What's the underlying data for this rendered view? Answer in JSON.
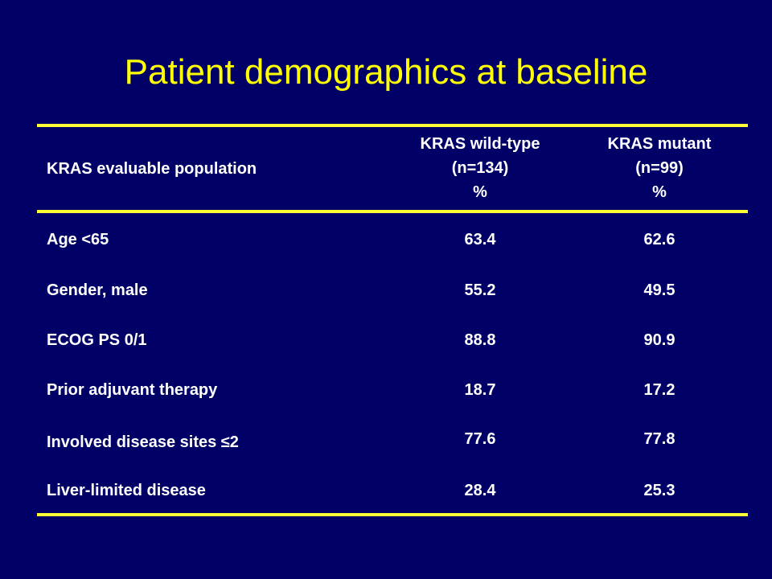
{
  "title": "Patient demographics at baseline",
  "table": {
    "header": {
      "label": "KRAS evaluable population",
      "col1": [
        "KRAS wild-type",
        "(n=134)",
        "%"
      ],
      "col2": [
        "KRAS mutant",
        "(n=99)",
        "%"
      ]
    },
    "rows": [
      {
        "label": "Age <65",
        "wt": "63.4",
        "mut": "62.6"
      },
      {
        "label": "Gender, male",
        "wt": "55.2",
        "mut": "49.5"
      },
      {
        "label": "ECOG PS 0/1",
        "wt": "88.8",
        "mut": "90.9"
      },
      {
        "label": "Prior adjuvant therapy",
        "wt": "18.7",
        "mut": "17.2"
      },
      {
        "label": "Involved disease sites ≤2",
        "wt": "77.6",
        "mut": "77.8"
      },
      {
        "label": "Liver-limited disease",
        "wt": "28.4",
        "mut": "25.3"
      }
    ]
  },
  "colors": {
    "background": "#000066",
    "title": "#FFFF00",
    "rule": "#FFFF33",
    "text": "#FFFFFF"
  }
}
